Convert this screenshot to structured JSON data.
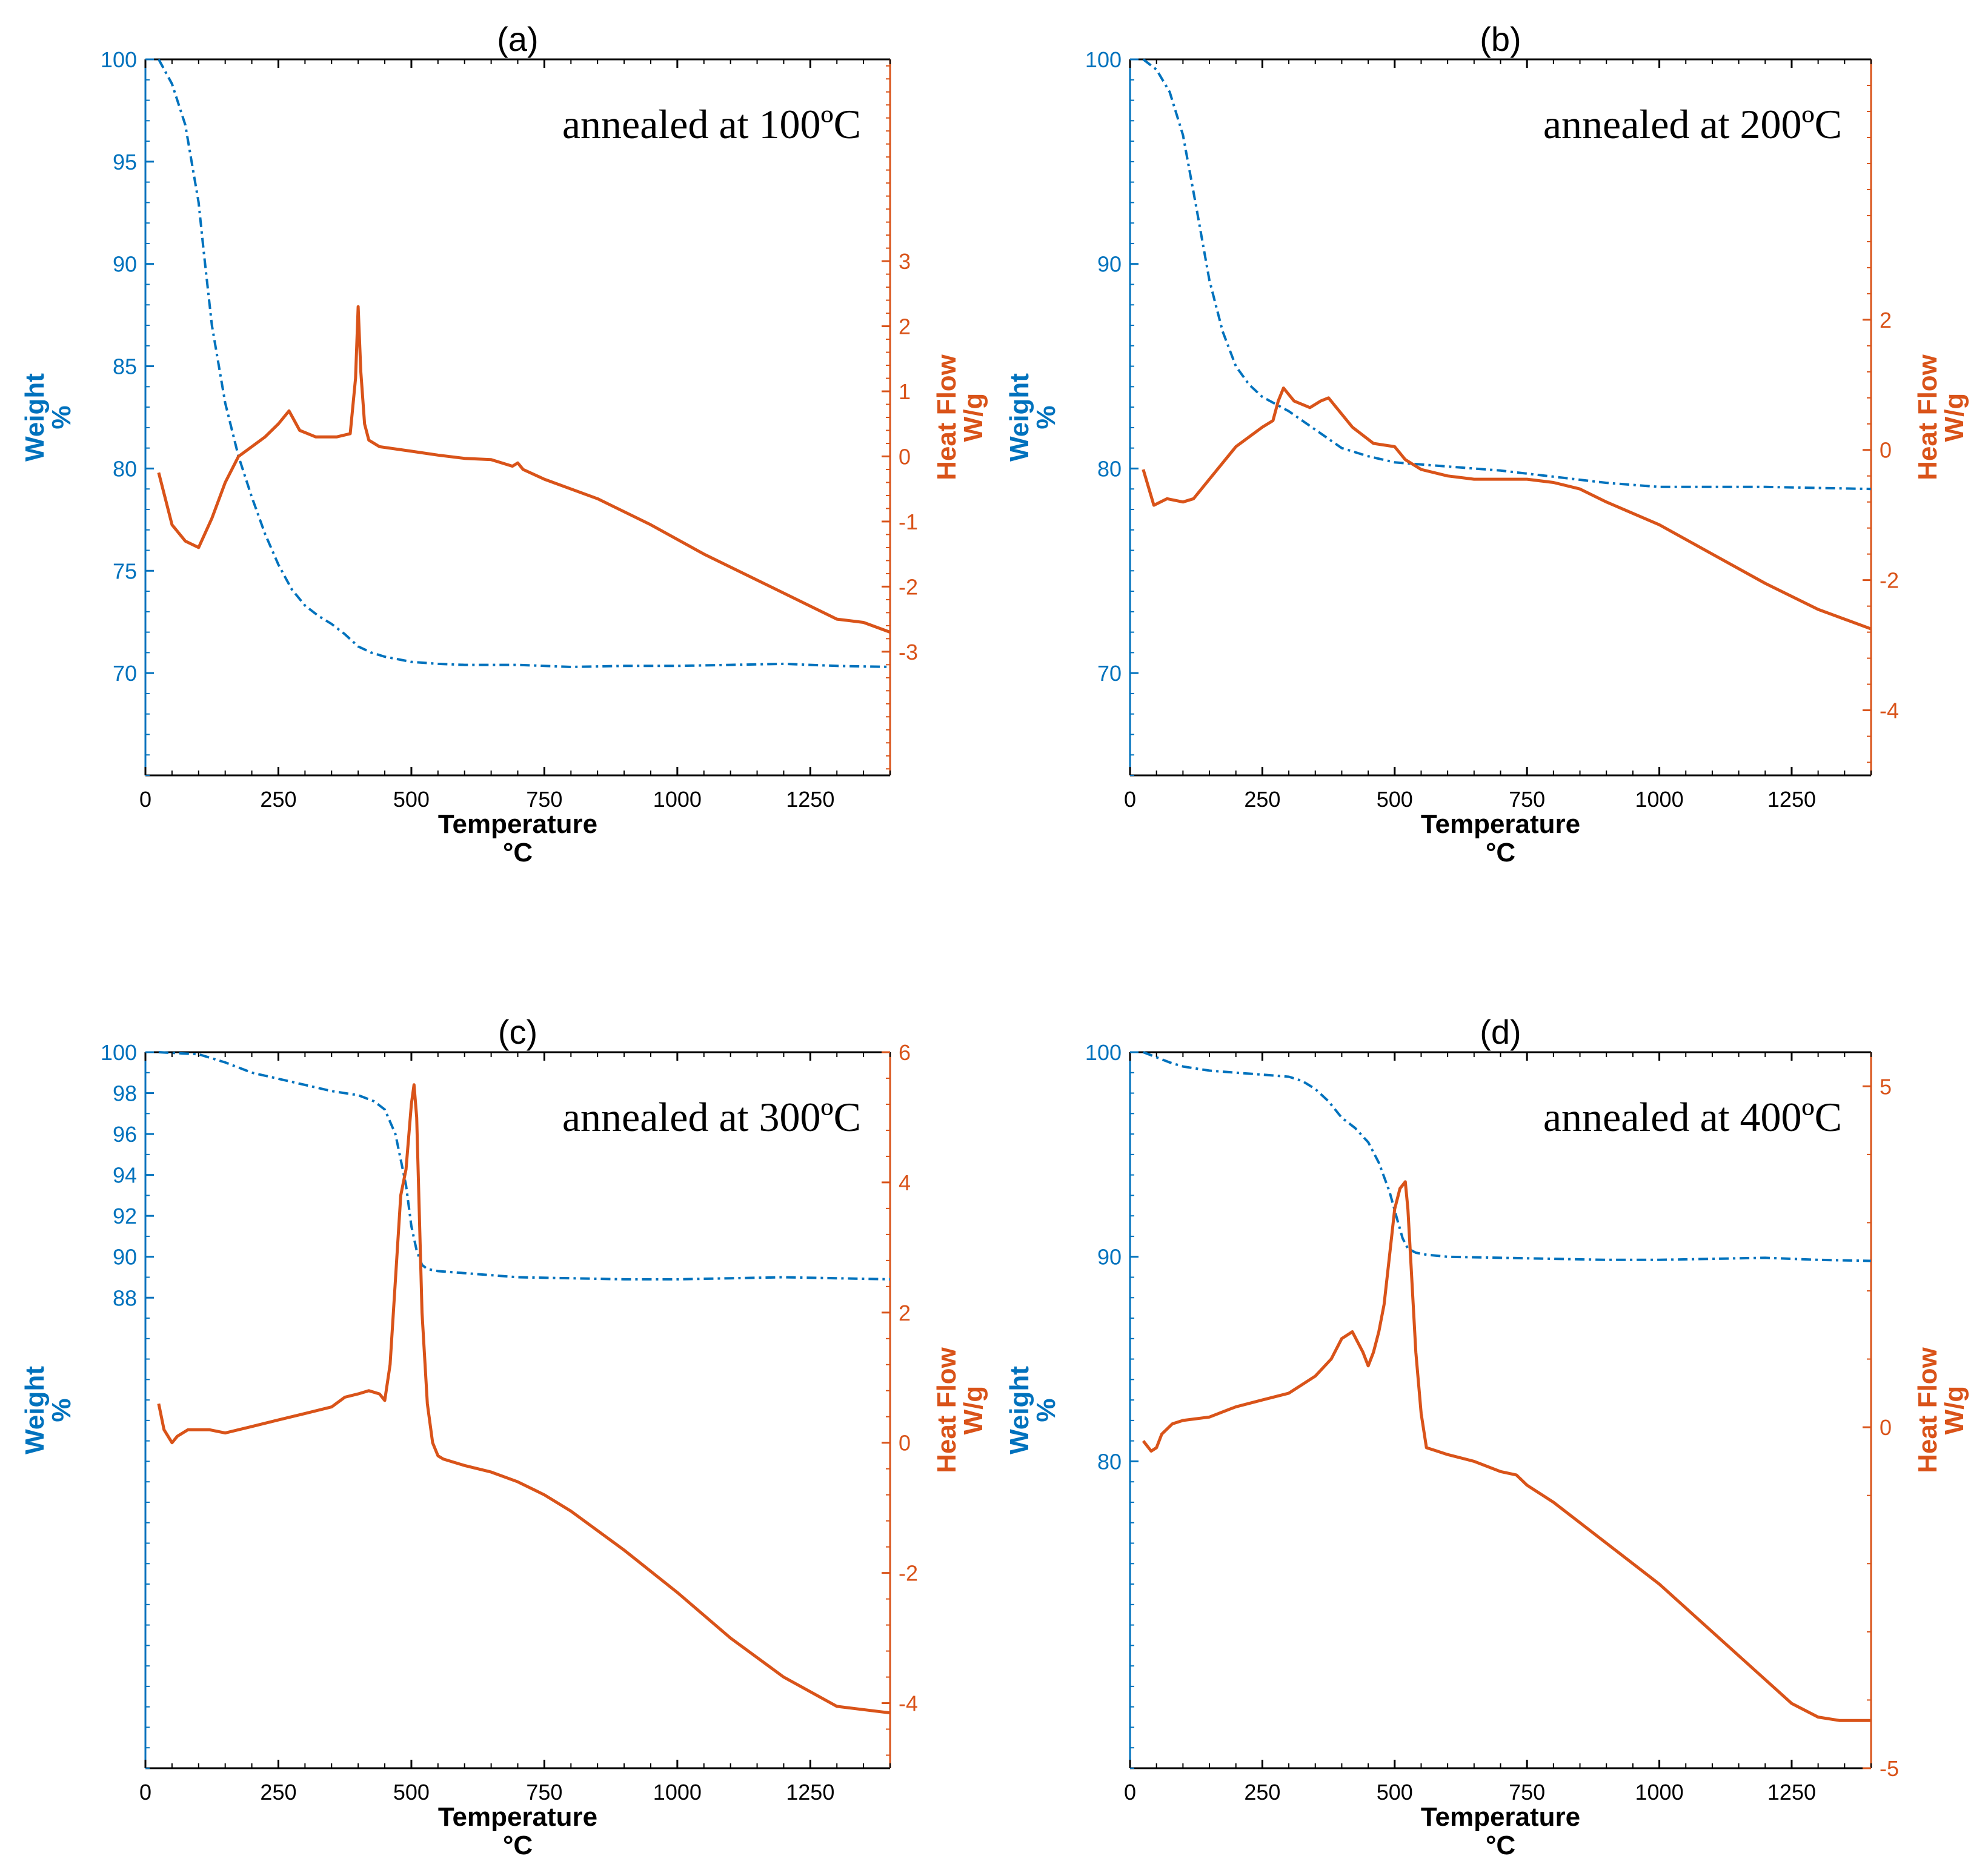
{
  "figure": {
    "colors": {
      "weight": "#0072BD",
      "heat": "#D95319",
      "text": "#000000"
    }
  },
  "chart_data": [
    {
      "type": "line",
      "panel_label": "(a)",
      "annotation": "annealed at 100ºC",
      "xlabel": "Temperature",
      "xunit": "°C",
      "xlim": [
        0,
        1400
      ],
      "xticks": [
        0,
        250,
        500,
        750,
        1000,
        1250
      ],
      "y_left": {
        "label": "Weight",
        "unit": "%",
        "lim": [
          65,
          100
        ],
        "ticks": [
          70,
          75,
          80,
          85,
          90,
          95,
          100
        ]
      },
      "y_right": {
        "label": "Heat Flow",
        "unit": "W/g",
        "lim": [
          -4.9,
          6.1
        ],
        "ticks": [
          -3,
          -2,
          -1,
          0,
          1,
          2,
          3
        ]
      },
      "series": [
        {
          "name": "Weight",
          "axis": "left",
          "style": "dashdot",
          "x": [
            25,
            50,
            75,
            100,
            110,
            125,
            150,
            175,
            200,
            225,
            250,
            275,
            300,
            325,
            350,
            375,
            400,
            425,
            450,
            500,
            550,
            600,
            700,
            800,
            900,
            1000,
            1100,
            1200,
            1300,
            1400
          ],
          "y": [
            100,
            98.8,
            96.8,
            93,
            90.5,
            87,
            83.2,
            80.6,
            78.6,
            76.8,
            75.3,
            74.1,
            73.3,
            72.8,
            72.4,
            71.9,
            71.3,
            71,
            70.8,
            70.55,
            70.45,
            70.4,
            70.4,
            70.3,
            70.35,
            70.35,
            70.4,
            70.45,
            70.35,
            70.3
          ]
        },
        {
          "name": "Heat Flow",
          "axis": "right",
          "style": "solid",
          "x": [
            25,
            50,
            75,
            100,
            125,
            150,
            175,
            200,
            225,
            250,
            270,
            290,
            320,
            360,
            385,
            395,
            400,
            405,
            412,
            420,
            440,
            500,
            550,
            600,
            650,
            690,
            700,
            710,
            750,
            850,
            950,
            1050,
            1150,
            1250,
            1300,
            1350,
            1400
          ],
          "y": [
            -0.25,
            -1.05,
            -1.3,
            -1.4,
            -0.95,
            -0.4,
            0,
            0.15,
            0.3,
            0.5,
            0.7,
            0.4,
            0.3,
            0.3,
            0.35,
            1.2,
            2.3,
            1.3,
            0.5,
            0.25,
            0.15,
            0.08,
            0.02,
            -0.03,
            -0.05,
            -0.15,
            -0.1,
            -0.2,
            -0.35,
            -0.65,
            -1.05,
            -1.5,
            -1.9,
            -2.3,
            -2.5,
            -2.55,
            -2.7
          ]
        }
      ]
    },
    {
      "type": "line",
      "panel_label": "(b)",
      "annotation": "annealed at 200ºC",
      "xlabel": "Temperature",
      "xunit": "°C",
      "xlim": [
        0,
        1400
      ],
      "xticks": [
        0,
        250,
        500,
        750,
        1000,
        1250
      ],
      "y_left": {
        "label": "Weight",
        "unit": "%",
        "lim": [
          65,
          100
        ],
        "ticks": [
          70,
          80,
          90,
          100
        ]
      },
      "y_right": {
        "label": "Heat Flow",
        "unit": "W/g",
        "lim": [
          -5,
          6
        ],
        "ticks": [
          -4,
          -2,
          0,
          2
        ]
      },
      "series": [
        {
          "name": "Weight",
          "axis": "left",
          "style": "dashdot",
          "x": [
            25,
            50,
            75,
            100,
            125,
            150,
            175,
            200,
            225,
            250,
            300,
            350,
            400,
            450,
            500,
            600,
            700,
            800,
            900,
            1000,
            1100,
            1200,
            1300,
            1400
          ],
          "y": [
            100,
            99.5,
            98.4,
            96.3,
            92.8,
            89.2,
            86.7,
            85,
            84.1,
            83.5,
            82.8,
            81.9,
            81,
            80.6,
            80.3,
            80.1,
            79.9,
            79.6,
            79.3,
            79.1,
            79.1,
            79.1,
            79.05,
            79
          ]
        },
        {
          "name": "Heat Flow",
          "axis": "right",
          "style": "solid",
          "x": [
            25,
            45,
            70,
            100,
            120,
            150,
            200,
            250,
            270,
            280,
            290,
            310,
            340,
            360,
            375,
            390,
            420,
            460,
            500,
            520,
            550,
            600,
            650,
            700,
            750,
            800,
            850,
            900,
            1000,
            1100,
            1200,
            1300,
            1350,
            1400
          ],
          "y": [
            -0.3,
            -0.85,
            -0.75,
            -0.8,
            -0.75,
            -0.45,
            0.05,
            0.35,
            0.45,
            0.75,
            0.95,
            0.75,
            0.65,
            0.75,
            0.8,
            0.65,
            0.35,
            0.1,
            0.05,
            -0.15,
            -0.3,
            -0.4,
            -0.45,
            -0.45,
            -0.45,
            -0.5,
            -0.6,
            -0.8,
            -1.15,
            -1.6,
            -2.05,
            -2.45,
            -2.6,
            -2.75
          ]
        }
      ]
    },
    {
      "type": "line",
      "panel_label": "(c)",
      "annotation": "annealed at 300ºC",
      "xlabel": "Temperature",
      "xunit": "°C",
      "xlim": [
        0,
        1400
      ],
      "xticks": [
        0,
        250,
        500,
        750,
        1000,
        1250
      ],
      "y_left": {
        "label": "Weight",
        "unit": "%",
        "lim": [
          65,
          100
        ],
        "ticks": [
          88,
          90,
          92,
          94,
          96,
          98,
          100
        ]
      },
      "y_right": {
        "label": "Heat Flow",
        "unit": "W/g",
        "lim": [
          -5,
          6
        ],
        "ticks": [
          -4,
          -2,
          0,
          2,
          4,
          6
        ]
      },
      "series": [
        {
          "name": "Weight",
          "axis": "left",
          "style": "dashdot",
          "x": [
            25,
            100,
            150,
            200,
            250,
            300,
            350,
            400,
            430,
            450,
            470,
            490,
            500,
            510,
            520,
            530,
            550,
            600,
            700,
            800,
            900,
            1000,
            1100,
            1200,
            1300,
            1400
          ],
          "y": [
            100,
            99.9,
            99.5,
            99,
            98.7,
            98.4,
            98.1,
            97.9,
            97.6,
            97.2,
            96,
            93.5,
            91.5,
            90.3,
            89.6,
            89.4,
            89.3,
            89.2,
            89,
            88.95,
            88.9,
            88.9,
            88.95,
            89,
            88.95,
            88.9
          ]
        },
        {
          "name": "Heat Flow",
          "axis": "right",
          "style": "solid",
          "x": [
            25,
            35,
            50,
            60,
            80,
            120,
            150,
            200,
            250,
            300,
            350,
            375,
            400,
            420,
            440,
            450,
            460,
            470,
            480,
            490,
            500,
            505,
            510,
            515,
            520,
            530,
            540,
            550,
            560,
            580,
            600,
            650,
            700,
            750,
            800,
            900,
            1000,
            1100,
            1200,
            1300,
            1350,
            1400
          ],
          "y": [
            0.6,
            0.2,
            0,
            0.1,
            0.2,
            0.2,
            0.15,
            0.25,
            0.35,
            0.45,
            0.55,
            0.7,
            0.75,
            0.8,
            0.75,
            0.65,
            1.2,
            2.5,
            3.8,
            4.2,
            5.2,
            5.5,
            5,
            3.5,
            2,
            0.6,
            0,
            -0.2,
            -0.25,
            -0.3,
            -0.35,
            -0.45,
            -0.6,
            -0.8,
            -1.05,
            -1.65,
            -2.3,
            -3,
            -3.6,
            -4.05,
            -4.1,
            -4.15
          ]
        }
      ]
    },
    {
      "type": "line",
      "panel_label": "(d)",
      "annotation": "annealed at 400ºC",
      "xlabel": "Temperature",
      "xunit": "°C",
      "xlim": [
        0,
        1400
      ],
      "xticks": [
        0,
        250,
        500,
        750,
        1000,
        1250
      ],
      "y_left": {
        "label": "Weight",
        "unit": "%",
        "lim": [
          65,
          100
        ],
        "ticks": [
          80,
          90,
          100
        ]
      },
      "y_right": {
        "label": "Heat Flow",
        "unit": "W/g",
        "lim": [
          -5,
          5.5
        ],
        "ticks": [
          -5,
          0,
          5
        ]
      },
      "series": [
        {
          "name": "Weight",
          "axis": "left",
          "style": "dashdot",
          "x": [
            25,
            75,
            100,
            150,
            200,
            250,
            300,
            325,
            350,
            375,
            400,
            425,
            450,
            470,
            490,
            505,
            515,
            525,
            540,
            560,
            600,
            700,
            800,
            900,
            1000,
            1100,
            1200,
            1300,
            1400
          ],
          "y": [
            100,
            99.5,
            99.3,
            99.1,
            99,
            98.9,
            98.8,
            98.6,
            98.2,
            97.6,
            96.8,
            96.3,
            95.6,
            94.6,
            93.2,
            91.8,
            90.9,
            90.4,
            90.2,
            90.1,
            90,
            89.95,
            89.9,
            89.85,
            89.85,
            89.9,
            89.95,
            89.85,
            89.8
          ]
        },
        {
          "name": "Heat Flow",
          "axis": "right",
          "style": "solid",
          "x": [
            25,
            40,
            50,
            60,
            80,
            100,
            150,
            200,
            250,
            300,
            350,
            380,
            400,
            420,
            440,
            450,
            460,
            470,
            480,
            490,
            500,
            510,
            520,
            525,
            530,
            540,
            550,
            560,
            580,
            600,
            650,
            700,
            730,
            750,
            800,
            900,
            1000,
            1100,
            1200,
            1250,
            1300,
            1340,
            1400
          ],
          "y": [
            -0.2,
            -0.35,
            -0.3,
            -0.1,
            0.05,
            0.1,
            0.15,
            0.3,
            0.4,
            0.5,
            0.75,
            1,
            1.3,
            1.4,
            1.1,
            0.9,
            1.1,
            1.4,
            1.8,
            2.5,
            3.2,
            3.5,
            3.6,
            3.2,
            2.5,
            1.1,
            0.2,
            -0.3,
            -0.35,
            -0.4,
            -0.5,
            -0.65,
            -0.7,
            -0.85,
            -1.1,
            -1.7,
            -2.3,
            -3,
            -3.7,
            -4.05,
            -4.25,
            -4.3,
            -4.3
          ]
        }
      ]
    }
  ]
}
